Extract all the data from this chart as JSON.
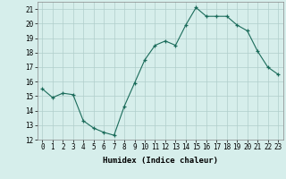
{
  "x": [
    0,
    1,
    2,
    3,
    4,
    5,
    6,
    7,
    8,
    9,
    10,
    11,
    12,
    13,
    14,
    15,
    16,
    17,
    18,
    19,
    20,
    21,
    22,
    23
  ],
  "y": [
    15.5,
    14.9,
    15.2,
    15.1,
    13.3,
    12.8,
    12.5,
    12.3,
    14.3,
    15.9,
    17.5,
    18.5,
    18.8,
    18.5,
    19.9,
    21.1,
    20.5,
    20.5,
    20.5,
    19.9,
    19.5,
    18.1,
    17.0,
    16.5
  ],
  "line_color": "#1a6b5a",
  "marker": "+",
  "bg_color": "#d6eeeb",
  "grid_color": "#b0ceca",
  "xlabel": "Humidex (Indice chaleur)",
  "ylim": [
    12,
    21.5
  ],
  "xlim": [
    -0.5,
    23.5
  ],
  "yticks": [
    12,
    13,
    14,
    15,
    16,
    17,
    18,
    19,
    20,
    21
  ],
  "xticks": [
    0,
    1,
    2,
    3,
    4,
    5,
    6,
    7,
    8,
    9,
    10,
    11,
    12,
    13,
    14,
    15,
    16,
    17,
    18,
    19,
    20,
    21,
    22,
    23
  ],
  "label_fontsize": 6.5,
  "tick_fontsize": 5.5
}
